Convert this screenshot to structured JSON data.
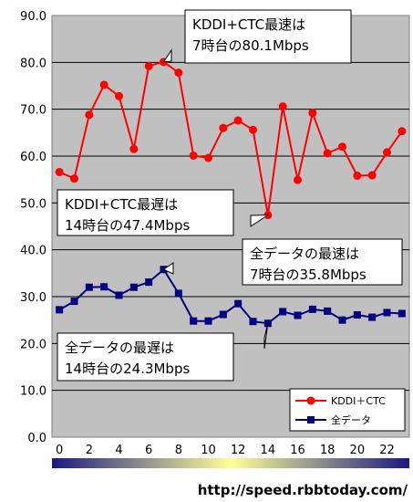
{
  "chart_data": {
    "type": "line",
    "x": [
      0,
      1,
      2,
      3,
      4,
      5,
      6,
      7,
      8,
      9,
      10,
      11,
      12,
      13,
      14,
      15,
      16,
      17,
      18,
      19,
      20,
      21,
      22,
      23
    ],
    "series": [
      {
        "name": "KDDI＋CTC",
        "color": "#ff0000",
        "marker": "circle",
        "values": [
          56.6,
          55.2,
          68.8,
          75.2,
          72.8,
          61.5,
          79.2,
          80.1,
          77.8,
          60.1,
          59.6,
          66.0,
          67.6,
          65.6,
          47.4,
          70.6,
          54.9,
          69.2,
          60.6,
          62.0,
          55.8,
          55.9,
          60.8,
          65.3
        ]
      },
      {
        "name": "全データ",
        "color": "#000080",
        "marker": "square",
        "values": [
          27.2,
          29.0,
          32.0,
          32.1,
          30.3,
          32.0,
          33.1,
          35.8,
          30.7,
          24.8,
          24.8,
          26.2,
          28.5,
          24.7,
          24.3,
          26.8,
          26.0,
          27.3,
          26.9,
          25.0,
          26.1,
          25.6,
          26.6,
          26.4
        ]
      }
    ],
    "ylim": [
      0,
      90
    ],
    "y_ticks": [
      "0.0",
      "10.0",
      "20.0",
      "30.0",
      "40.0",
      "50.0",
      "60.0",
      "70.0",
      "80.0",
      "90.0"
    ],
    "x_ticks": [
      "0",
      "2",
      "4",
      "6",
      "8",
      "10",
      "12",
      "14",
      "16",
      "18",
      "20",
      "22"
    ],
    "grid": "horizontal",
    "plot_background": "#c0c0c0",
    "legend_position": "bottom-right",
    "annotations": [
      {
        "lines": [
          "KDDI+CTC最速は",
          "7時台の80.1Mbps"
        ],
        "series": 0,
        "x": 7
      },
      {
        "lines": [
          "KDDI+CTC最遅は",
          "14時台の47.4Mbps"
        ],
        "series": 0,
        "x": 14
      },
      {
        "lines": [
          "全データの最速は",
          "7時台の35.8Mbps"
        ],
        "series": 1,
        "x": 7
      },
      {
        "lines": [
          "全データの最遅は",
          "14時台の24.3Mbps"
        ],
        "series": 1,
        "x": 14
      }
    ],
    "gradient_bar": [
      "#1a1a80",
      "#ffff99",
      "#1a1a80"
    ]
  },
  "footer": {
    "url": "http://speed.rbbtoday.com/"
  }
}
